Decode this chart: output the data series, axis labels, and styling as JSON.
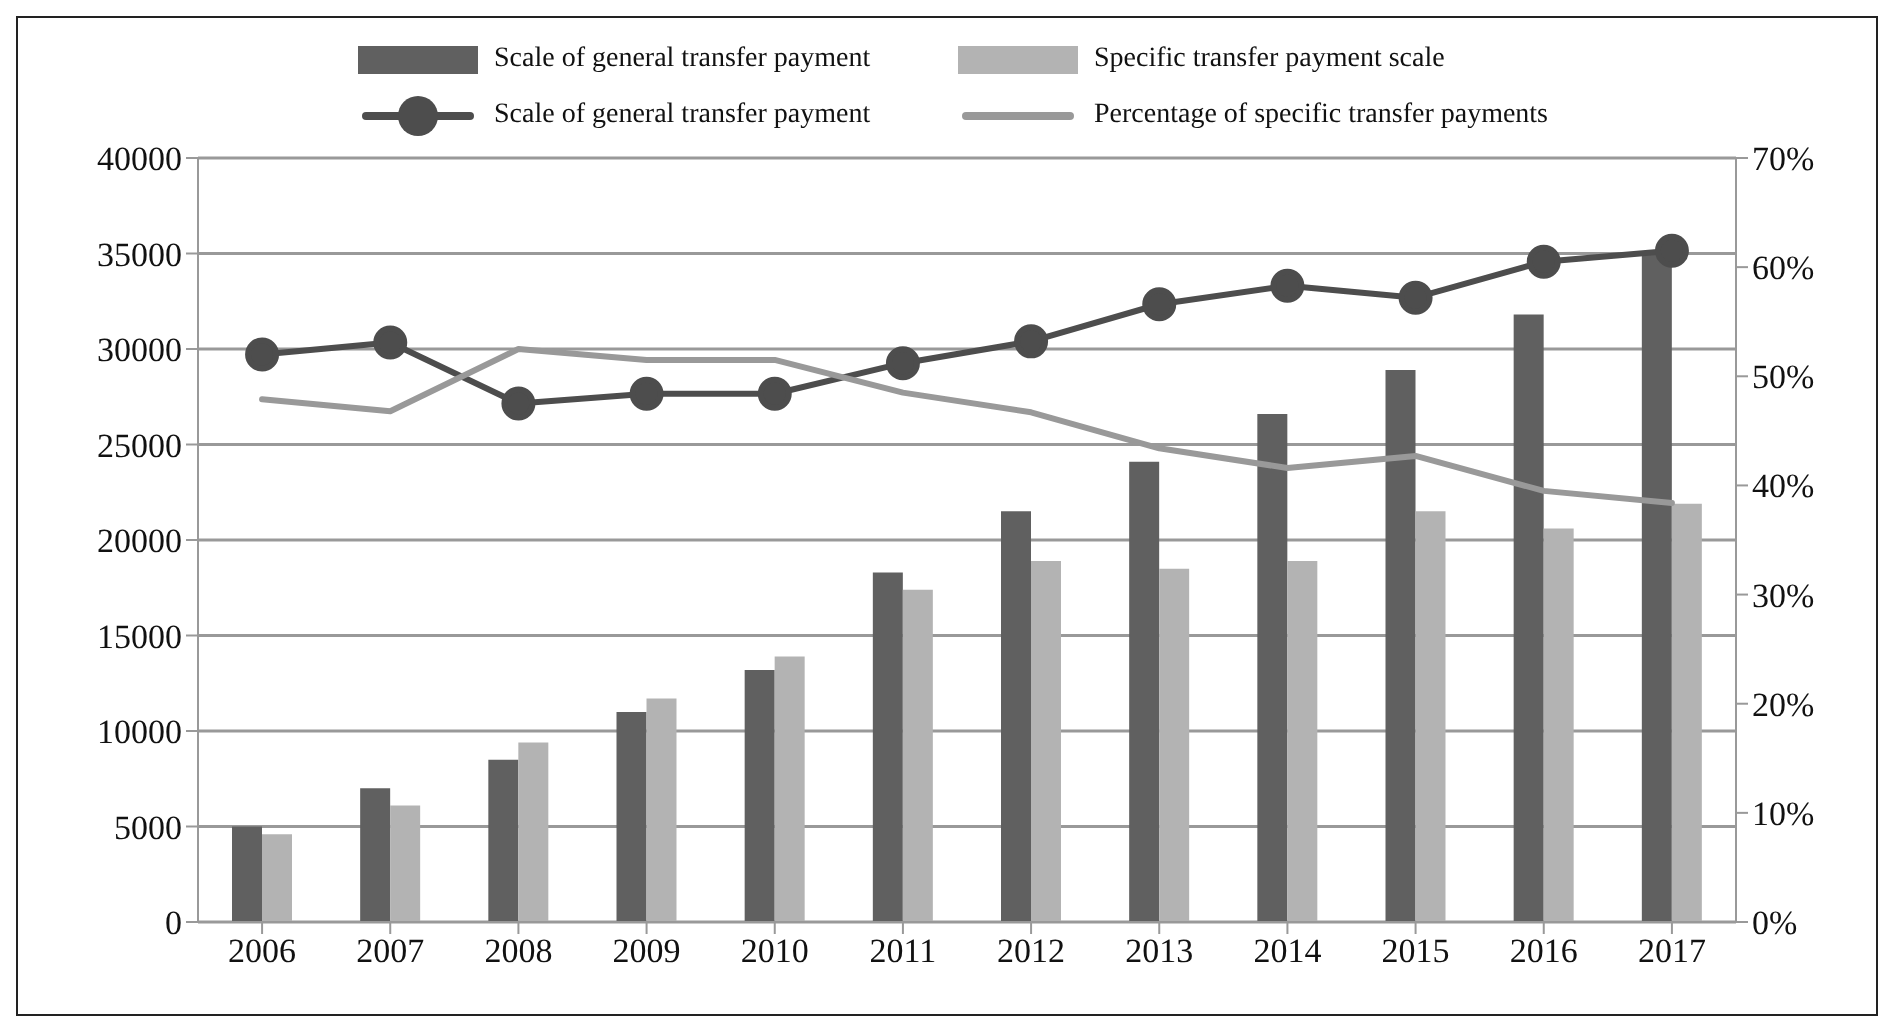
{
  "chart_data": {
    "type": "bar",
    "categories": [
      "2006",
      "2007",
      "2008",
      "2009",
      "2010",
      "2011",
      "2012",
      "2013",
      "2014",
      "2015",
      "2016",
      "2017"
    ],
    "series": [
      {
        "name": "Scale of general transfer payment",
        "color": "#606060",
        "values": [
          5000,
          7000,
          8500,
          11000,
          13200,
          18300,
          21500,
          24100,
          26600,
          28900,
          31800,
          35000
        ]
      },
      {
        "name": "Specific transfer payment scale",
        "color": "#b3b3b3",
        "values": [
          4600,
          6100,
          9400,
          11700,
          13900,
          17400,
          18900,
          18500,
          18900,
          21500,
          20600,
          21900
        ]
      },
      {
        "name": "Scale of general transfer payment",
        "type": "line",
        "axis": "y2",
        "marker": "circle",
        "color": "#4d4d4d",
        "values": [
          52.0,
          53.1,
          47.5,
          48.4,
          48.4,
          51.2,
          53.2,
          56.6,
          58.3,
          57.2,
          60.5,
          61.5
        ]
      },
      {
        "name": "Percentage of specific transfer payments",
        "type": "line",
        "axis": "y2",
        "marker": "none",
        "color": "#999999",
        "values": [
          47.9,
          46.8,
          52.5,
          51.5,
          51.5,
          48.5,
          46.7,
          43.4,
          41.6,
          42.7,
          39.5,
          38.4
        ]
      }
    ],
    "ylim": [
      0,
      40000
    ],
    "yticks": [
      0,
      5000,
      10000,
      15000,
      20000,
      25000,
      30000,
      35000,
      40000
    ],
    "y2lim": [
      0,
      70
    ],
    "y2ticks": [
      {
        "value": 0,
        "label": "0%"
      },
      {
        "value": 10,
        "label": "10%"
      },
      {
        "value": 20,
        "label": "20%"
      },
      {
        "value": 30,
        "label": "30%"
      },
      {
        "value": 40,
        "label": "40%"
      },
      {
        "value": 50,
        "label": "50%"
      },
      {
        "value": 60,
        "label": "60%"
      },
      {
        "value": 70,
        "label": "70%"
      }
    ],
    "grid": "y",
    "legend": "top"
  }
}
